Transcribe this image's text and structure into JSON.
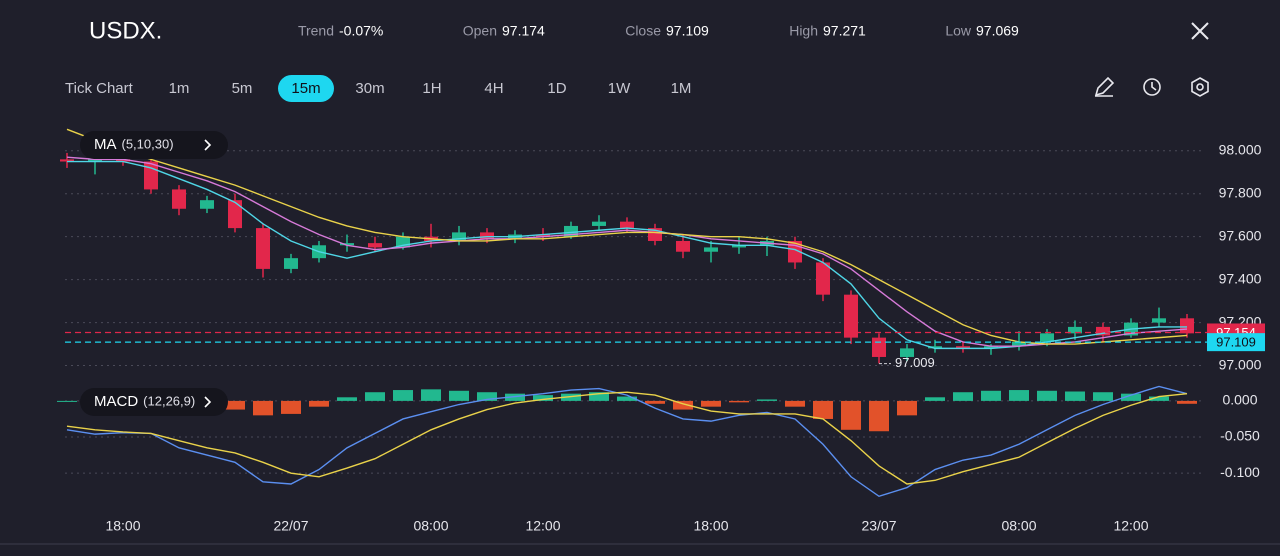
{
  "header": {
    "symbol": "USDX.",
    "stats": [
      {
        "label": "Trend",
        "value": "-0.07%"
      },
      {
        "label": "Open",
        "value": "97.174"
      },
      {
        "label": "Close",
        "value": "97.109"
      },
      {
        "label": "High",
        "value": "97.271"
      },
      {
        "label": "Low",
        "value": "97.069"
      }
    ]
  },
  "toolbar": {
    "timeframes": [
      "Tick Chart",
      "1m",
      "5m",
      "15m",
      "30m",
      "1H",
      "4H",
      "1D",
      "1W",
      "1M"
    ],
    "active": 3
  },
  "chart_data": [
    {
      "type": "candlestick",
      "legend_title": "MA",
      "legend_params": "(5,10,30)",
      "up_color": "#22b88f",
      "down_color": "#e2274b",
      "open": [
        97.96,
        97.95,
        97.96,
        97.95,
        97.82,
        97.73,
        97.77,
        97.64,
        97.45,
        97.5,
        97.56,
        97.57,
        97.55,
        97.6,
        97.58,
        97.62,
        97.59,
        97.61,
        97.6,
        97.65,
        97.67,
        97.64,
        97.58,
        97.53,
        97.55,
        97.56,
        97.58,
        97.48,
        97.33,
        97.13,
        97.04,
        97.08,
        97.09,
        97.08,
        97.09,
        97.11,
        97.15,
        97.18,
        97.14,
        97.2,
        97.22
      ],
      "high": [
        97.99,
        97.98,
        97.99,
        97.96,
        97.84,
        97.79,
        97.8,
        97.66,
        97.52,
        97.58,
        97.61,
        97.6,
        97.62,
        97.66,
        97.65,
        97.64,
        97.63,
        97.64,
        97.67,
        97.7,
        97.69,
        97.66,
        97.61,
        97.58,
        97.6,
        97.6,
        97.6,
        97.5,
        97.35,
        97.15,
        97.1,
        97.12,
        97.11,
        97.1,
        97.16,
        97.17,
        97.21,
        97.2,
        97.22,
        97.27,
        97.24
      ],
      "low": [
        97.92,
        97.89,
        97.93,
        97.8,
        97.7,
        97.71,
        97.62,
        97.41,
        97.43,
        97.48,
        97.53,
        97.53,
        97.54,
        97.55,
        97.56,
        97.57,
        97.57,
        97.58,
        97.59,
        97.63,
        97.62,
        97.56,
        97.5,
        97.48,
        97.52,
        97.51,
        97.45,
        97.3,
        97.1,
        97.01,
        97.02,
        97.06,
        97.06,
        97.05,
        97.07,
        97.09,
        97.12,
        97.11,
        97.13,
        97.18,
        97.13
      ],
      "close": [
        97.95,
        97.96,
        97.95,
        97.82,
        97.73,
        97.77,
        97.64,
        97.45,
        97.5,
        97.56,
        97.57,
        97.55,
        97.6,
        97.58,
        97.62,
        97.59,
        97.61,
        97.6,
        97.65,
        97.67,
        97.64,
        97.58,
        97.53,
        97.55,
        97.56,
        97.58,
        97.48,
        97.33,
        97.13,
        97.04,
        97.08,
        97.09,
        97.08,
        97.09,
        97.11,
        97.15,
        97.18,
        97.14,
        97.2,
        97.22,
        97.15
      ],
      "lines": [
        {
          "color": "#4fd6e6",
          "values": [
            97.95,
            97.95,
            97.95,
            97.92,
            97.87,
            97.82,
            97.76,
            97.66,
            97.58,
            97.53,
            97.5,
            97.53,
            97.56,
            97.58,
            97.59,
            97.6,
            97.6,
            97.61,
            97.62,
            97.63,
            97.64,
            97.63,
            97.6,
            97.57,
            97.56,
            97.56,
            97.54,
            97.48,
            97.38,
            97.22,
            97.12,
            97.08,
            97.08,
            97.08,
            97.09,
            97.11,
            97.13,
            97.15,
            97.17,
            97.18,
            97.18
          ]
        },
        {
          "color": "#d67ad8",
          "values": [
            97.97,
            97.96,
            97.96,
            97.94,
            97.9,
            97.86,
            97.81,
            97.74,
            97.67,
            97.61,
            97.56,
            97.54,
            97.55,
            97.57,
            97.58,
            97.59,
            97.59,
            97.6,
            97.61,
            97.62,
            97.63,
            97.62,
            97.61,
            97.59,
            97.58,
            97.57,
            97.56,
            97.52,
            97.45,
            97.35,
            97.25,
            97.16,
            97.11,
            97.09,
            97.09,
            97.1,
            97.11,
            97.13,
            97.15,
            97.16,
            97.17
          ]
        },
        {
          "color": "#e9d24a",
          "values": [
            98.1,
            98.05,
            98.0,
            97.96,
            97.92,
            97.88,
            97.84,
            97.79,
            97.74,
            97.69,
            97.65,
            97.62,
            97.6,
            97.59,
            97.58,
            97.58,
            97.59,
            97.59,
            97.6,
            97.61,
            97.62,
            97.62,
            97.61,
            97.6,
            97.6,
            97.59,
            97.57,
            97.53,
            97.47,
            97.4,
            97.33,
            97.26,
            97.19,
            97.14,
            97.11,
            97.1,
            97.1,
            97.11,
            97.12,
            97.13,
            97.14
          ]
        }
      ],
      "price_lines": [
        {
          "value": 97.154,
          "color": "#e2274b"
        },
        {
          "value": 97.109,
          "color": "#1ed7f0"
        }
      ],
      "low_marker": {
        "index": 29,
        "value": 97.009
      },
      "ylim": [
        96.97,
        98.12
      ],
      "yticks": [
        {
          "value": 97,
          "label": "97.000"
        },
        {
          "value": 97.2,
          "label": "97.200"
        },
        {
          "value": 97.4,
          "label": "97.400"
        },
        {
          "value": 97.6,
          "label": "97.600"
        },
        {
          "value": 97.8,
          "label": "97.800"
        },
        {
          "value": 98,
          "label": "98.000"
        }
      ],
      "grid": true
    },
    {
      "type": "bar",
      "legend_title": "MACD",
      "legend_params": "(12,26,9)",
      "up_color": "#22b88f",
      "down_color": "#e2522a",
      "categories": [
        null,
        null,
        "18:00",
        null,
        null,
        null,
        null,
        null,
        "22/07",
        null,
        null,
        null,
        null,
        "08:00",
        null,
        null,
        null,
        "12:00",
        null,
        null,
        null,
        null,
        null,
        "18:00",
        null,
        null,
        null,
        null,
        null,
        "23/07",
        null,
        null,
        null,
        null,
        "08:00",
        null,
        null,
        null,
        "12:00",
        null,
        null
      ],
      "values": [
        0.0,
        -0.003,
        -0.002,
        0.0,
        -0.004,
        -0.006,
        -0.012,
        -0.02,
        -0.018,
        -0.008,
        0.005,
        0.012,
        0.015,
        0.016,
        0.014,
        0.012,
        0.01,
        0.008,
        0.01,
        0.012,
        0.006,
        -0.004,
        -0.012,
        -0.008,
        -0.002,
        0.002,
        -0.008,
        -0.025,
        -0.04,
        -0.042,
        -0.02,
        0.005,
        0.012,
        0.014,
        0.015,
        0.014,
        0.013,
        0.012,
        0.01,
        0.006,
        -0.004
      ],
      "lines": [
        {
          "color": "#5b8ff0",
          "values": [
            -0.04,
            -0.046,
            -0.044,
            -0.045,
            -0.065,
            -0.075,
            -0.085,
            -0.112,
            -0.115,
            -0.095,
            -0.065,
            -0.045,
            -0.025,
            -0.015,
            -0.005,
            0.002,
            0.006,
            0.01,
            0.015,
            0.017,
            0.008,
            -0.01,
            -0.025,
            -0.028,
            -0.02,
            -0.016,
            -0.025,
            -0.06,
            -0.105,
            -0.132,
            -0.12,
            -0.095,
            -0.082,
            -0.075,
            -0.06,
            -0.04,
            -0.02,
            -0.005,
            0.008,
            0.02,
            0.01
          ]
        },
        {
          "color": "#e9d24a",
          "values": [
            -0.035,
            -0.04,
            -0.043,
            -0.045,
            -0.055,
            -0.065,
            -0.072,
            -0.085,
            -0.1,
            -0.105,
            -0.093,
            -0.08,
            -0.06,
            -0.04,
            -0.025,
            -0.012,
            -0.003,
            0.002,
            0.006,
            0.01,
            0.012,
            0.008,
            -0.004,
            -0.014,
            -0.018,
            -0.018,
            -0.018,
            -0.025,
            -0.055,
            -0.09,
            -0.115,
            -0.11,
            -0.098,
            -0.088,
            -0.078,
            -0.058,
            -0.038,
            -0.02,
            -0.006,
            0.006,
            0.01
          ]
        }
      ],
      "ylim": [
        -0.151,
        0.022
      ],
      "yticks": [
        {
          "value": -0.1,
          "label": "-0.100"
        },
        {
          "value": -0.05,
          "label": "-0.050"
        },
        {
          "value": 0,
          "label": "0.000"
        }
      ],
      "grid": true
    }
  ]
}
